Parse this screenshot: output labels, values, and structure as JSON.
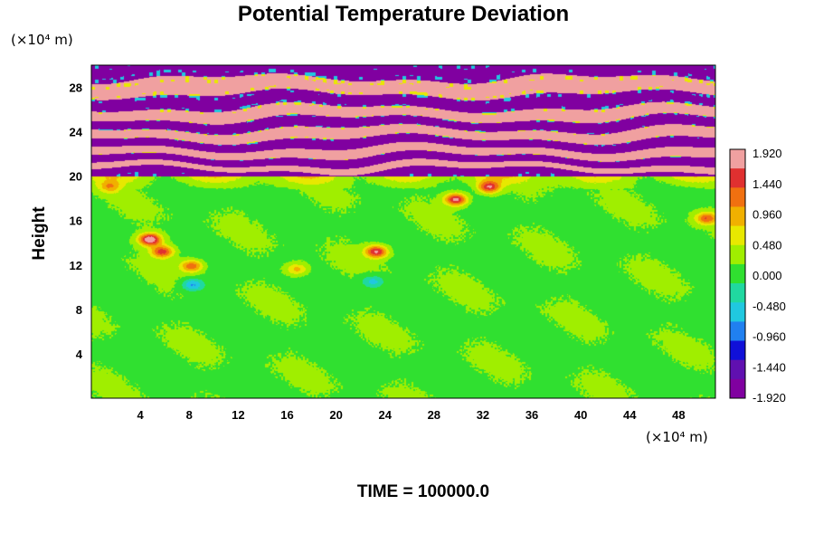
{
  "chart_data": {
    "type": "heatmap",
    "title": "Potential Temperature Deviation",
    "ylabel": "Height",
    "x_unit": "(×10⁴ m)",
    "y_unit": "(×10⁴ m)",
    "xlim": [
      0,
      51
    ],
    "ylim": [
      0,
      30
    ],
    "x_ticks": [
      4,
      8,
      12,
      16,
      20,
      24,
      28,
      32,
      36,
      40,
      44,
      48
    ],
    "y_ticks": [
      4,
      8,
      12,
      16,
      20,
      24,
      28
    ],
    "x_tick_labels": [
      "4",
      "8",
      "12",
      "16",
      "20",
      "24",
      "28",
      "32",
      "36",
      "40",
      "44",
      "48"
    ],
    "y_tick_labels": [
      "4",
      "8",
      "12",
      "16",
      "20",
      "24",
      "28"
    ],
    "colorbar": {
      "min": -1.92,
      "max": 1.92,
      "labels": [
        "1.920",
        "1.440",
        "0.960",
        "0.480",
        "0.000",
        "-0.480",
        "-0.960",
        "-1.440",
        "-1.920"
      ],
      "colors": [
        "#f0a0a0",
        "#e03030",
        "#f07010",
        "#f0b000",
        "#e8e800",
        "#a0ee00",
        "#30e030",
        "#20d8a0",
        "#20c8e0",
        "#2080f0",
        "#1010d8",
        "#6010b0",
        "#8000a0"
      ]
    },
    "field": {
      "lower_layer_top": 20,
      "background_value": 0.1,
      "features": [
        {
          "x": 4.8,
          "y": 14.3,
          "value": 1.9
        },
        {
          "x": 5.8,
          "y": 13.2,
          "value": 1.4
        },
        {
          "x": 8.2,
          "y": 11.9,
          "value": 1.2
        },
        {
          "x": 16.8,
          "y": 11.6,
          "value": 0.8
        },
        {
          "x": 23.3,
          "y": 13.2,
          "value": 1.6
        },
        {
          "x": 29.8,
          "y": 17.9,
          "value": 1.7
        },
        {
          "x": 32.5,
          "y": 19.0,
          "value": 1.5
        },
        {
          "x": 50.3,
          "y": 16.2,
          "value": 1.2
        },
        {
          "x": 1.5,
          "y": 19.0,
          "value": 0.8
        },
        {
          "x": 8.3,
          "y": 10.2,
          "value": -0.9
        },
        {
          "x": 23.0,
          "y": 10.5,
          "value": -0.7
        }
      ],
      "upper_bands": [
        {
          "y": 29.6,
          "value": -1.9
        },
        {
          "y": 28.0,
          "value": 1.9
        },
        {
          "y": 26.7,
          "value": -1.9
        },
        {
          "y": 25.6,
          "value": 1.9
        },
        {
          "y": 24.7,
          "value": -1.9
        },
        {
          "y": 23.8,
          "value": 1.9
        },
        {
          "y": 22.9,
          "value": -1.9
        },
        {
          "y": 22.2,
          "value": 1.9
        },
        {
          "y": 21.4,
          "value": -1.9
        },
        {
          "y": 20.8,
          "value": 1.9
        },
        {
          "y": 20.3,
          "value": -1.9
        }
      ]
    },
    "footer": "TIME = 100000.0"
  }
}
